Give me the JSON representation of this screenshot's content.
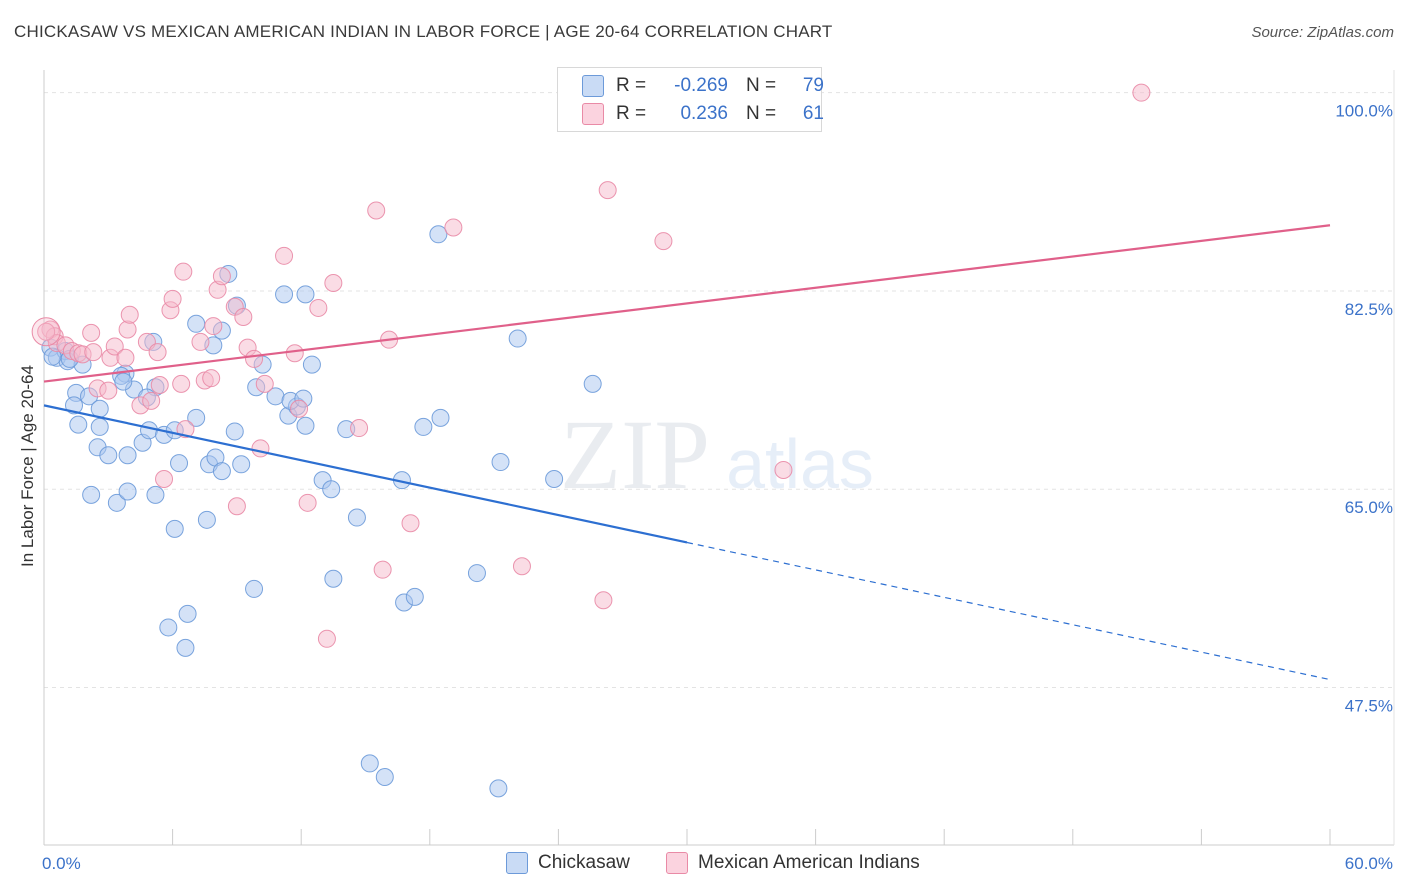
{
  "title": "CHICKASAW VS MEXICAN AMERICAN INDIAN IN LABOR FORCE | AGE 20-64 CORRELATION CHART",
  "source": "Source: ZipAtlas.com",
  "watermark": {
    "zip": "ZIP",
    "atlas": "atlas"
  },
  "legend": {
    "rows": [
      {
        "r_label": "R =",
        "r_value": "-0.269",
        "n_label": "N =",
        "n_value": "79",
        "color": "#a9c6f0",
        "border": "#6c9ad9"
      },
      {
        "r_label": "R =",
        "r_value": "0.236",
        "n_label": "N =",
        "n_value": "61",
        "color": "#f6b9cb",
        "border": "#e98aa6"
      }
    ]
  },
  "bottom_legend": {
    "series1": "Chickasaw",
    "series2": "Mexican American Indians"
  },
  "chart_data": {
    "type": "scatter",
    "title": "CHICKASAW VS MEXICAN AMERICAN INDIAN IN LABOR FORCE | AGE 20-64 CORRELATION CHART",
    "xlabel": "",
    "ylabel": "In Labor Force | Age 20-64",
    "xlim": [
      0,
      60
    ],
    "ylim": [
      33.6,
      102
    ],
    "x_tick_labels": [
      "0.0%",
      "60.0%"
    ],
    "y_ticks": [
      47.5,
      65.0,
      82.5,
      100.0
    ],
    "y_tick_labels": [
      "47.5%",
      "65.0%",
      "82.5%",
      "100.0%"
    ],
    "grid": true,
    "series": [
      {
        "name": "Chickasaw",
        "color": "#6c9ad9",
        "fill": "#a9c6f0",
        "trend": {
          "x0": 0,
          "y0": 72.4,
          "x1": 60,
          "y1": 48.2,
          "solid_until_x": 30
        },
        "points": [
          [
            0.3,
            77.5
          ],
          [
            0.6,
            76.6
          ],
          [
            1.0,
            77.2
          ],
          [
            1.1,
            76.3
          ],
          [
            1.8,
            76.0
          ],
          [
            1.5,
            73.5
          ],
          [
            1.4,
            72.4
          ],
          [
            2.1,
            73.2
          ],
          [
            2.6,
            72.1
          ],
          [
            1.6,
            70.7
          ],
          [
            2.6,
            70.5
          ],
          [
            2.5,
            68.7
          ],
          [
            3.0,
            68.0
          ],
          [
            3.9,
            68.0
          ],
          [
            3.8,
            75.2
          ],
          [
            3.6,
            75.0
          ],
          [
            5.1,
            78.0
          ],
          [
            5.2,
            74.0
          ],
          [
            4.2,
            73.8
          ],
          [
            4.8,
            73.1
          ],
          [
            4.6,
            69.1
          ],
          [
            4.9,
            70.2
          ],
          [
            5.6,
            69.8
          ],
          [
            5.2,
            64.5
          ],
          [
            6.1,
            70.2
          ],
          [
            6.3,
            67.3
          ],
          [
            7.1,
            71.3
          ],
          [
            7.1,
            79.6
          ],
          [
            7.9,
            77.7
          ],
          [
            8.3,
            79.0
          ],
          [
            9.0,
            81.2
          ],
          [
            8.6,
            84.0
          ],
          [
            8.9,
            70.1
          ],
          [
            7.7,
            67.2
          ],
          [
            8.0,
            67.8
          ],
          [
            8.3,
            66.6
          ],
          [
            9.2,
            67.2
          ],
          [
            10.2,
            76.0
          ],
          [
            10.8,
            73.2
          ],
          [
            9.9,
            74.0
          ],
          [
            11.2,
            82.2
          ],
          [
            11.4,
            71.5
          ],
          [
            11.8,
            72.3
          ],
          [
            12.2,
            70.6
          ],
          [
            12.2,
            82.2
          ],
          [
            12.5,
            76.0
          ],
          [
            11.5,
            72.8
          ],
          [
            12.1,
            73.0
          ],
          [
            13.0,
            65.8
          ],
          [
            13.4,
            65.0
          ],
          [
            14.1,
            70.3
          ],
          [
            16.7,
            65.8
          ],
          [
            17.7,
            70.5
          ],
          [
            18.4,
            87.5
          ],
          [
            18.5,
            71.3
          ],
          [
            21.3,
            67.4
          ],
          [
            22.1,
            78.3
          ],
          [
            23.8,
            65.9
          ],
          [
            25.6,
            74.3
          ],
          [
            2.2,
            64.5
          ],
          [
            3.4,
            63.8
          ],
          [
            3.9,
            64.8
          ],
          [
            6.1,
            61.5
          ],
          [
            7.6,
            62.3
          ],
          [
            14.6,
            62.5
          ],
          [
            16.8,
            55.0
          ],
          [
            17.3,
            55.5
          ],
          [
            20.2,
            57.6
          ],
          [
            13.5,
            57.1
          ],
          [
            6.7,
            54.0
          ],
          [
            5.8,
            52.8
          ],
          [
            6.6,
            51.0
          ],
          [
            9.8,
            56.2
          ],
          [
            15.2,
            40.8
          ],
          [
            15.9,
            39.6
          ],
          [
            21.2,
            38.6
          ],
          [
            0.4,
            76.7
          ],
          [
            1.2,
            76.5
          ],
          [
            3.7,
            74.5
          ]
        ]
      },
      {
        "name": "Mexican American Indians",
        "color": "#e98aa6",
        "fill": "#f6b9cb",
        "trend": {
          "x0": 0,
          "y0": 74.5,
          "x1": 60,
          "y1": 88.3
        },
        "points": [
          [
            0.3,
            79.1
          ],
          [
            0.5,
            78.5
          ],
          [
            0.6,
            77.9
          ],
          [
            1.0,
            77.7
          ],
          [
            1.3,
            77.2
          ],
          [
            1.6,
            77.0
          ],
          [
            1.8,
            76.9
          ],
          [
            2.2,
            78.8
          ],
          [
            2.3,
            77.1
          ],
          [
            2.5,
            73.9
          ],
          [
            3.0,
            73.7
          ],
          [
            3.1,
            76.6
          ],
          [
            3.3,
            77.6
          ],
          [
            3.8,
            76.6
          ],
          [
            3.9,
            79.1
          ],
          [
            4.0,
            80.4
          ],
          [
            4.5,
            72.4
          ],
          [
            4.8,
            78.0
          ],
          [
            5.0,
            72.8
          ],
          [
            5.3,
            77.1
          ],
          [
            5.4,
            74.2
          ],
          [
            5.6,
            65.9
          ],
          [
            5.9,
            80.8
          ],
          [
            6.0,
            81.8
          ],
          [
            6.4,
            74.3
          ],
          [
            6.5,
            84.2
          ],
          [
            6.6,
            70.3
          ],
          [
            7.3,
            78.0
          ],
          [
            7.5,
            74.6
          ],
          [
            7.8,
            74.8
          ],
          [
            7.9,
            79.4
          ],
          [
            8.1,
            82.6
          ],
          [
            8.3,
            83.8
          ],
          [
            8.9,
            81.1
          ],
          [
            9.0,
            63.5
          ],
          [
            9.3,
            80.2
          ],
          [
            9.5,
            77.5
          ],
          [
            9.8,
            76.5
          ],
          [
            10.1,
            68.6
          ],
          [
            10.3,
            74.3
          ],
          [
            11.2,
            85.6
          ],
          [
            11.7,
            77.0
          ],
          [
            11.9,
            72.1
          ],
          [
            12.3,
            63.8
          ],
          [
            12.8,
            81.0
          ],
          [
            13.2,
            51.8
          ],
          [
            13.5,
            83.2
          ],
          [
            14.7,
            70.4
          ],
          [
            15.5,
            89.6
          ],
          [
            15.8,
            57.9
          ],
          [
            16.1,
            78.2
          ],
          [
            17.1,
            62.0
          ],
          [
            19.1,
            88.1
          ],
          [
            22.3,
            58.2
          ],
          [
            26.1,
            55.2
          ],
          [
            26.3,
            91.4
          ],
          [
            28.0,
            100.0
          ],
          [
            28.9,
            86.9
          ],
          [
            34.5,
            66.7
          ],
          [
            51.2,
            100.0
          ],
          [
            0.1,
            78.9
          ]
        ]
      }
    ]
  }
}
